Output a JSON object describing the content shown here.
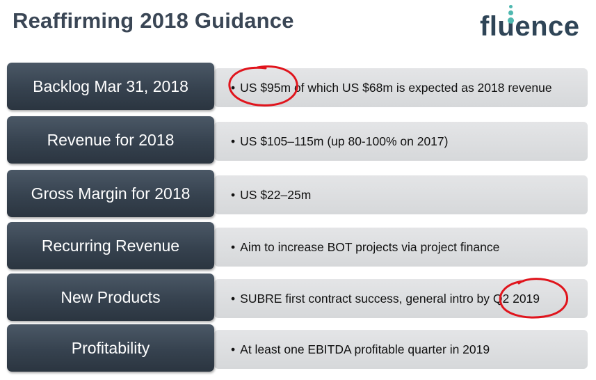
{
  "slide": {
    "title": "Reaffirming 2018 Guidance",
    "logo_text": "fluence"
  },
  "colors": {
    "label_box": "#36424f",
    "value_box": "#d9dadc",
    "title_text": "#3a4655",
    "logo_text": "#2f4557",
    "logo_accent": "#4fb8b0",
    "annotation": "#e0141c"
  },
  "rows": [
    {
      "label": "Backlog Mar 31, 2018",
      "value": "US $95m of which US $68m is expected as 2018 revenue"
    },
    {
      "label": "Revenue for 2018",
      "value": "US $105–115m (up 80-100% on 2017)"
    },
    {
      "label": "Gross Margin for 2018",
      "value": "US $22–25m"
    },
    {
      "label": "Recurring Revenue",
      "value": "Aim to increase BOT projects via project finance"
    },
    {
      "label": "New Products",
      "value": "SUBRE first contract success, general intro by Q2 2019"
    },
    {
      "label": "Profitability",
      "value": "At least one EBITDA profitable quarter in 2019"
    }
  ],
  "bullet": "•",
  "annotations": [
    {
      "type": "hand-drawn-circle",
      "target": "US $95m"
    },
    {
      "type": "hand-drawn-circle",
      "target": "Q2 2019"
    }
  ]
}
